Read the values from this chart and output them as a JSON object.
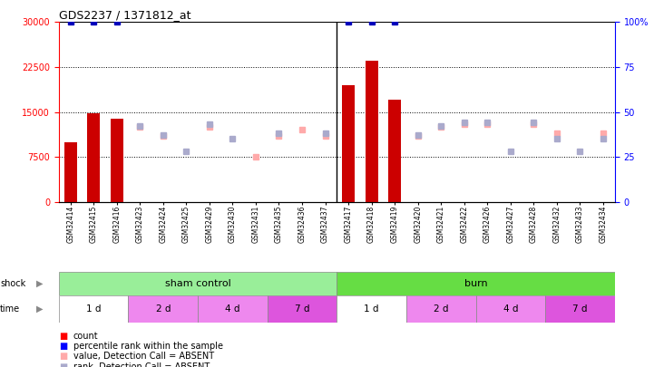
{
  "title": "GDS2237 / 1371812_at",
  "samples": [
    "GSM32414",
    "GSM32415",
    "GSM32416",
    "GSM32423",
    "GSM32424",
    "GSM32425",
    "GSM32429",
    "GSM32430",
    "GSM32431",
    "GSM32435",
    "GSM32436",
    "GSM32437",
    "GSM32417",
    "GSM32418",
    "GSM32419",
    "GSM32420",
    "GSM32421",
    "GSM32422",
    "GSM32426",
    "GSM32427",
    "GSM32428",
    "GSM32432",
    "GSM32433",
    "GSM32434"
  ],
  "count_values": [
    10000,
    14800,
    13900,
    0,
    0,
    0,
    0,
    0,
    0,
    0,
    0,
    0,
    19500,
    23500,
    17000,
    0,
    0,
    0,
    0,
    0,
    0,
    0,
    0,
    0
  ],
  "percentile_rank": [
    100,
    100,
    100,
    null,
    null,
    null,
    null,
    null,
    null,
    null,
    null,
    null,
    100,
    100,
    100,
    null,
    null,
    null,
    null,
    null,
    null,
    null,
    null,
    null
  ],
  "absent_value": [
    null,
    null,
    null,
    12500,
    11000,
    null,
    12500,
    null,
    7500,
    11000,
    12000,
    11000,
    null,
    null,
    null,
    11000,
    12500,
    13000,
    13000,
    null,
    13000,
    11500,
    null,
    11500
  ],
  "absent_rank": [
    null,
    null,
    null,
    42,
    37,
    28,
    43,
    35,
    null,
    38,
    null,
    38,
    null,
    null,
    null,
    37,
    42,
    44,
    44,
    28,
    44,
    35,
    28,
    35
  ],
  "ylim_left": [
    0,
    30000
  ],
  "ylim_right": [
    0,
    100
  ],
  "yticks_left": [
    0,
    7500,
    15000,
    22500,
    30000
  ],
  "yticks_right": [
    0,
    25,
    50,
    75,
    100
  ],
  "shock_groups": [
    {
      "label": "sham control",
      "start": 0,
      "end": 12
    },
    {
      "label": "burn",
      "start": 12,
      "end": 24
    }
  ],
  "time_groups": [
    {
      "label": "1 d",
      "start": 0,
      "end": 3,
      "variant": "light"
    },
    {
      "label": "2 d",
      "start": 3,
      "end": 6,
      "variant": "mid"
    },
    {
      "label": "4 d",
      "start": 6,
      "end": 9,
      "variant": "mid"
    },
    {
      "label": "7 d",
      "start": 9,
      "end": 12,
      "variant": "dark"
    },
    {
      "label": "1 d",
      "start": 12,
      "end": 15,
      "variant": "light"
    },
    {
      "label": "2 d",
      "start": 15,
      "end": 18,
      "variant": "mid"
    },
    {
      "label": "4 d",
      "start": 18,
      "end": 21,
      "variant": "mid"
    },
    {
      "label": "7 d",
      "start": 21,
      "end": 24,
      "variant": "dark"
    }
  ],
  "shock_color_sham": "#99EE99",
  "shock_color_burn": "#66DD44",
  "time_color_light": "#FFFFFF",
  "time_color_mid": "#EE88EE",
  "time_color_dark": "#DD55DD",
  "bar_color": "#CC0000",
  "dot_blue_color": "#0000BB",
  "dot_absent_val_color": "#FFAAAA",
  "dot_absent_rank_color": "#AAAACC",
  "bg_color": "#FFFFFF",
  "label_color_shock": "#888888",
  "label_color_time": "#888888"
}
